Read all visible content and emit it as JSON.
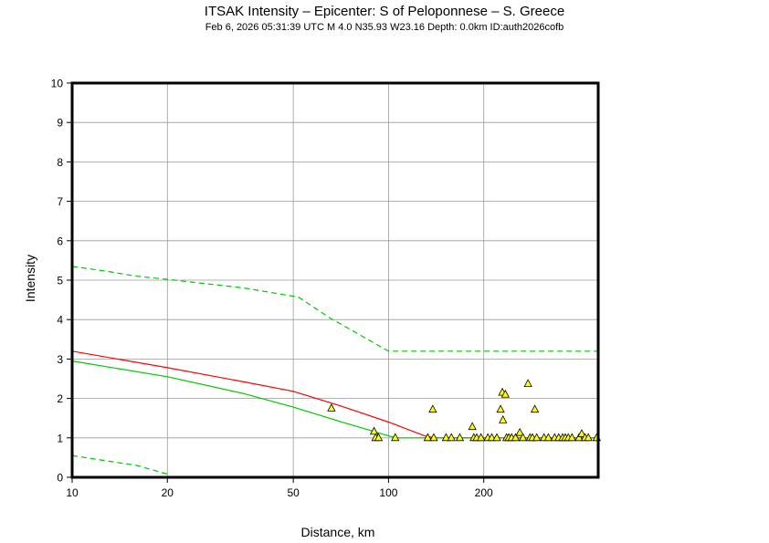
{
  "header": {
    "title": "ITSAK Intensity –  Epicenter: S of Peloponnese – S. Greece",
    "subtitle": "Feb  6, 2026 05:31:39 UTC   M 4.0   N35.93 W23.16   Depth: 0.0km   ID:auth2026cofb"
  },
  "chart_data": {
    "type": "scatter",
    "title": "ITSAK Intensity –  Epicenter: S of Peloponnese – S. Greece",
    "xlabel": "Distance, km",
    "ylabel": "Intensity",
    "xscale": "log",
    "xlim": [
      10,
      460
    ],
    "ylim": [
      0,
      10
    ],
    "x_ticks": [
      10,
      20,
      50,
      100,
      200
    ],
    "x_tick_labels": [
      "10",
      "20",
      "50",
      "100",
      "200"
    ],
    "y_ticks": [
      0,
      1,
      2,
      3,
      4,
      5,
      6,
      7,
      8,
      9,
      10
    ],
    "y_tick_labels": [
      "0",
      "1",
      "2",
      "3",
      "4",
      "5",
      "6",
      "7",
      "8",
      "9",
      "10"
    ],
    "grid": true,
    "series": [
      {
        "kind": "line",
        "color": "#ff0000",
        "style": "solid",
        "points": [
          [
            10,
            3.2
          ],
          [
            20,
            2.78
          ],
          [
            35,
            2.42
          ],
          [
            50,
            2.18
          ],
          [
            70,
            1.82
          ],
          [
            100,
            1.4
          ],
          [
            130,
            1.05
          ],
          [
            140,
            1.0
          ],
          [
            460,
            1.0
          ]
        ]
      },
      {
        "kind": "line",
        "color": "#00c800",
        "style": "solid",
        "points": [
          [
            10,
            2.95
          ],
          [
            20,
            2.55
          ],
          [
            35,
            2.12
          ],
          [
            50,
            1.78
          ],
          [
            70,
            1.42
          ],
          [
            100,
            1.05
          ],
          [
            106,
            1.0
          ],
          [
            460,
            1.0
          ]
        ]
      },
      {
        "kind": "line",
        "color": "#00c800",
        "style": "dashed",
        "points": [
          [
            10,
            5.35
          ],
          [
            13,
            5.22
          ],
          [
            16,
            5.1
          ],
          [
            20,
            5.02
          ],
          [
            35,
            4.8
          ],
          [
            52,
            4.57
          ],
          [
            65,
            4.05
          ],
          [
            100,
            3.2
          ],
          [
            460,
            3.2
          ]
        ]
      },
      {
        "kind": "line",
        "color": "#00c800",
        "style": "dashed",
        "points": [
          [
            10,
            0.55
          ],
          [
            16,
            0.3
          ],
          [
            20,
            0.08
          ]
        ]
      },
      {
        "kind": "scatter",
        "marker": "triangle",
        "color": "#ffff00",
        "edgecolor": "#000000",
        "points": [
          [
            66,
            1.75
          ],
          [
            90,
            1.16
          ],
          [
            91,
            1.0
          ],
          [
            93,
            1.0
          ],
          [
            105,
            1.0
          ],
          [
            133,
            1.0
          ],
          [
            138,
            1.72
          ],
          [
            139,
            1.0
          ],
          [
            152,
            1.0
          ],
          [
            158,
            1.0
          ],
          [
            168,
            1.0
          ],
          [
            184,
            1.28
          ],
          [
            186,
            1.0
          ],
          [
            190,
            1.0
          ],
          [
            196,
            1.0
          ],
          [
            206,
            1.0
          ],
          [
            212,
            1.0
          ],
          [
            220,
            1.0
          ],
          [
            226,
            1.72
          ],
          [
            229,
            2.15
          ],
          [
            230,
            1.45
          ],
          [
            234,
            2.1
          ],
          [
            236,
            1.0
          ],
          [
            240,
            1.0
          ],
          [
            245,
            1.0
          ],
          [
            252,
            1.0
          ],
          [
            260,
            1.13
          ],
          [
            266,
            1.0
          ],
          [
            276,
            2.37
          ],
          [
            280,
            1.0
          ],
          [
            285,
            1.0
          ],
          [
            290,
            1.72
          ],
          [
            294,
            1.0
          ],
          [
            310,
            1.0
          ],
          [
            320,
            1.0
          ],
          [
            335,
            1.0
          ],
          [
            345,
            1.0
          ],
          [
            355,
            1.0
          ],
          [
            362,
            1.0
          ],
          [
            370,
            1.0
          ],
          [
            380,
            1.0
          ],
          [
            400,
            1.0
          ],
          [
            408,
            1.1
          ],
          [
            418,
            1.0
          ],
          [
            428,
            1.0
          ],
          [
            455,
            1.0
          ]
        ]
      }
    ]
  }
}
